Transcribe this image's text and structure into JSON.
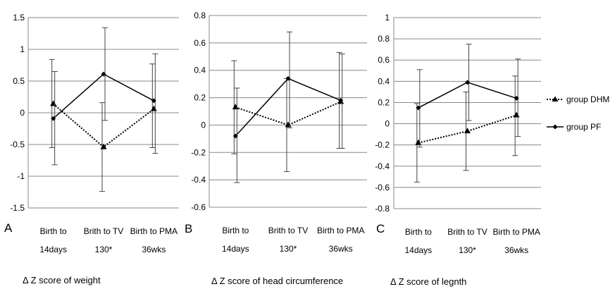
{
  "chart_data": [
    {
      "type": "line",
      "panel_label": "A",
      "caption": "Δ Z score of weight",
      "categories": [
        [
          "Birth to",
          "14days"
        ],
        [
          "Brith to TV",
          "130*"
        ],
        [
          "Birth to PMA",
          "36wks"
        ]
      ],
      "ylim": [
        -1.5,
        1.5
      ],
      "yticks": [
        "1.5",
        "1",
        "0.5",
        "0",
        "-0.5",
        "-1",
        "-1.5"
      ],
      "ytick_values": [
        1.5,
        1,
        0.5,
        0,
        -0.5,
        -1,
        -1.5
      ],
      "grid": true,
      "series": [
        {
          "name": "group DHM",
          "values": [
            0.14,
            -0.54,
            0.06
          ],
          "err_low": [
            -0.55,
            -1.24,
            -0.55
          ],
          "err_high": [
            0.84,
            0.16,
            0.77
          ]
        },
        {
          "name": "group PF",
          "values": [
            -0.09,
            0.61,
            0.19
          ],
          "err_low": [
            -0.82,
            -0.12,
            -0.64
          ],
          "err_high": [
            0.65,
            1.34,
            0.93
          ]
        }
      ]
    },
    {
      "type": "line",
      "panel_label": "B",
      "caption": "Δ Z score of head circumference",
      "categories": [
        [
          "Birth to",
          "14days"
        ],
        [
          "Brith to TV",
          "130*"
        ],
        [
          "Birth to PMA",
          "36wks"
        ]
      ],
      "ylim": [
        -0.6,
        0.8
      ],
      "yticks": [
        "0.8",
        "0.6",
        "0.4",
        "0.2",
        "0",
        "-0.2",
        "-0.4",
        "-0.6"
      ],
      "ytick_values": [
        0.8,
        0.6,
        0.4,
        0.2,
        0,
        -0.2,
        -0.4,
        -0.6
      ],
      "grid": true,
      "series": [
        {
          "name": "group DHM",
          "values": [
            0.13,
            0.0,
            0.17
          ],
          "err_low": [
            -0.21,
            -0.34,
            -0.17
          ],
          "err_high": [
            0.47,
            0.34,
            0.53
          ]
        },
        {
          "name": "group PF",
          "values": [
            -0.08,
            0.34,
            0.18
          ],
          "err_low": [
            -0.42,
            -0.02,
            -0.17
          ],
          "err_high": [
            0.27,
            0.68,
            0.52
          ]
        }
      ]
    },
    {
      "type": "line",
      "panel_label": "C",
      "caption": "Δ Z score of legnth",
      "categories": [
        [
          "Birth to",
          "14days"
        ],
        [
          "Brith to TV",
          "130*"
        ],
        [
          "Birth to PMA",
          "36wks"
        ]
      ],
      "ylim": [
        -0.8,
        1.0
      ],
      "yticks": [
        "1",
        "0.8",
        "0.6",
        "0.4",
        "0.2",
        "0",
        "-0.2",
        "-0.4",
        "-0.6",
        "-0.8"
      ],
      "ytick_values": [
        1,
        0.8,
        0.6,
        0.4,
        0.2,
        0,
        -0.2,
        -0.4,
        -0.6,
        -0.8
      ],
      "grid": true,
      "series": [
        {
          "name": "group DHM",
          "values": [
            -0.18,
            -0.07,
            0.08
          ],
          "err_low": [
            -0.55,
            -0.44,
            -0.3
          ],
          "err_high": [
            0.19,
            0.3,
            0.45
          ]
        },
        {
          "name": "group PF",
          "values": [
            0.15,
            0.39,
            0.24
          ],
          "err_low": [
            -0.22,
            0.03,
            -0.12
          ],
          "err_high": [
            0.51,
            0.75,
            0.61
          ]
        }
      ]
    }
  ],
  "legend": {
    "position": "right",
    "items": [
      {
        "label": "group DHM",
        "style": "dotted",
        "marker": "triangle"
      },
      {
        "label": "group PF",
        "style": "solid",
        "marker": "diamond"
      }
    ]
  },
  "colors": {
    "line": "#000000",
    "grid": "#888888",
    "errorbar": "#444444"
  }
}
